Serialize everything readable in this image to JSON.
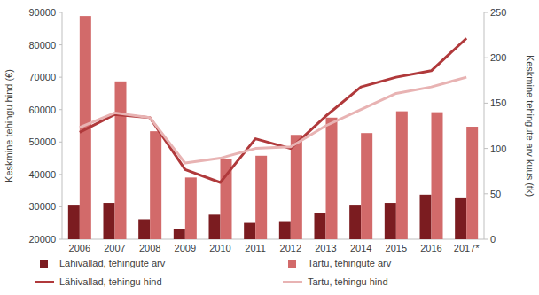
{
  "chart_data": {
    "type": "bar",
    "categories": [
      "2006",
      "2007",
      "2008",
      "2009",
      "2010",
      "2011",
      "2012",
      "2013",
      "2014",
      "2015",
      "2016",
      "2017*"
    ],
    "y_label": "Keskmine tehingu hind (€)",
    "y2_label": "Keskmine tehingute arv kuus (tk)",
    "ylim": [
      20000,
      90000
    ],
    "yticks": [
      20000,
      30000,
      40000,
      50000,
      60000,
      70000,
      80000,
      90000
    ],
    "y2lim": [
      0,
      250
    ],
    "y2ticks": [
      0,
      50,
      100,
      150,
      200,
      250
    ],
    "grid": false,
    "legend": "bottom",
    "series": [
      {
        "name": "Lähivallad, tehingute arv",
        "type": "bar",
        "axis": "y2",
        "color": "#7b1c20",
        "values": [
          38,
          40,
          22,
          11,
          27,
          18,
          19,
          29,
          38,
          40,
          49,
          46
        ]
      },
      {
        "name": "Tartu, tehingute arv",
        "type": "bar",
        "axis": "y2",
        "color": "#d26a6a",
        "values": [
          246,
          174,
          119,
          68,
          88,
          92,
          115,
          134,
          117,
          141,
          140,
          124
        ]
      },
      {
        "name": "Lähivallad, tehingu hind",
        "type": "line",
        "axis": "y",
        "color": "#b0393b",
        "values": [
          53000,
          58500,
          57500,
          41500,
          37500,
          51000,
          48000,
          58000,
          67000,
          70000,
          72000,
          82000
        ]
      },
      {
        "name": "Tartu, tehingu hind",
        "type": "line",
        "axis": "y",
        "color": "#e8b3b3",
        "values": [
          54500,
          59000,
          57500,
          43500,
          45000,
          48000,
          48500,
          55000,
          60000,
          65000,
          67000,
          70000
        ]
      }
    ]
  }
}
